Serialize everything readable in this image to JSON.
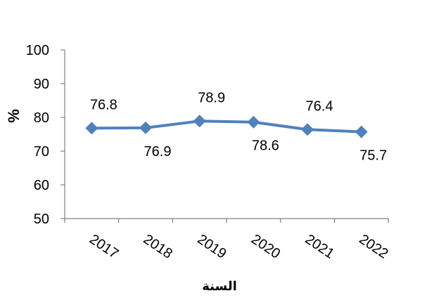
{
  "chart_data": {
    "type": "line",
    "title": "",
    "xlabel": "السنة",
    "ylabel": "%",
    "categories": [
      "2017",
      "2018",
      "2019",
      "2020",
      "2021",
      "2022"
    ],
    "series": [
      {
        "values": [
          76.8,
          76.9,
          78.9,
          78.6,
          76.4,
          75.7
        ],
        "labels": [
          "76.8",
          "76.9",
          "78.9",
          "78.6",
          "76.4",
          "75.7"
        ],
        "label_positions": [
          "above",
          "below",
          "above",
          "below",
          "above",
          "below"
        ]
      }
    ],
    "ylim": [
      50,
      100
    ],
    "yticks": [
      "100",
      "90",
      "80",
      "70",
      "60",
      "50"
    ],
    "grid": false,
    "legend": "none",
    "x_tick_rotation": "tilted",
    "colors": {
      "line": "#4F81BD",
      "marker": "#4F81BD",
      "axis": "#808080",
      "text": "#000000"
    },
    "marker": "diamond"
  }
}
